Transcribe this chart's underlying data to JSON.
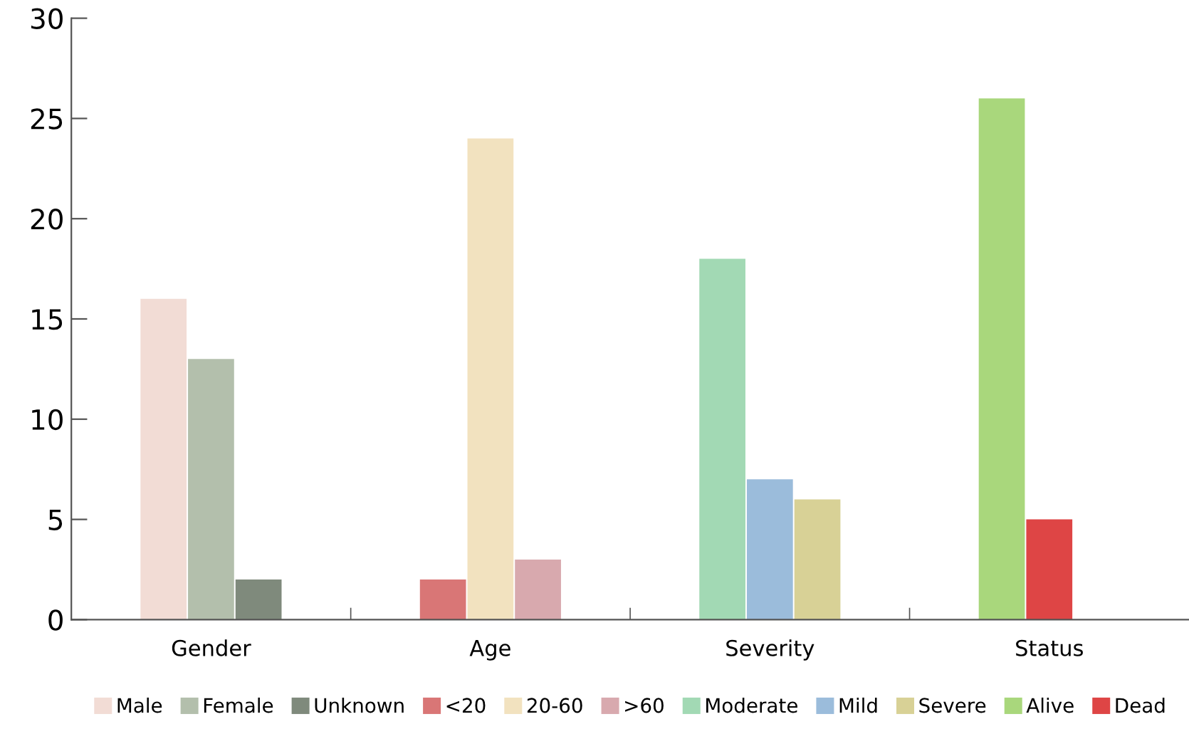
{
  "chart_data": {
    "type": "bar",
    "categories": [
      "Gender",
      "Age",
      "Severity",
      "Status"
    ],
    "series": [
      {
        "name": "Male",
        "color": "#f2dcd5",
        "values": [
          16,
          null,
          null,
          null
        ]
      },
      {
        "name": "Female",
        "color": "#b3bfac",
        "values": [
          13,
          null,
          null,
          null
        ]
      },
      {
        "name": "Unknown",
        "color": "#7f8a7c",
        "values": [
          2,
          null,
          null,
          null
        ]
      },
      {
        "name": "<20",
        "color": "#d97676",
        "values": [
          null,
          2,
          null,
          null
        ]
      },
      {
        "name": "20-60",
        "color": "#f2e2bf",
        "values": [
          null,
          24,
          null,
          null
        ]
      },
      {
        "name": ">60",
        "color": "#d8a9ae",
        "values": [
          null,
          3,
          null,
          null
        ]
      },
      {
        "name": "Moderate",
        "color": "#a2d9b4",
        "values": [
          null,
          null,
          18,
          null
        ]
      },
      {
        "name": "Mild",
        "color": "#9bbcdb",
        "values": [
          null,
          null,
          7,
          null
        ]
      },
      {
        "name": "Severe",
        "color": "#d8d196",
        "values": [
          null,
          null,
          6,
          null
        ]
      },
      {
        "name": "Alive",
        "color": "#a9d77c",
        "values": [
          null,
          null,
          null,
          26
        ]
      },
      {
        "name": "Dead",
        "color": "#de4545",
        "values": [
          null,
          null,
          null,
          5
        ]
      }
    ],
    "ylim": [
      0,
      30
    ],
    "yticks": [
      0,
      5,
      10,
      15,
      20,
      25,
      30
    ],
    "grid": false,
    "legend": "bottom"
  }
}
